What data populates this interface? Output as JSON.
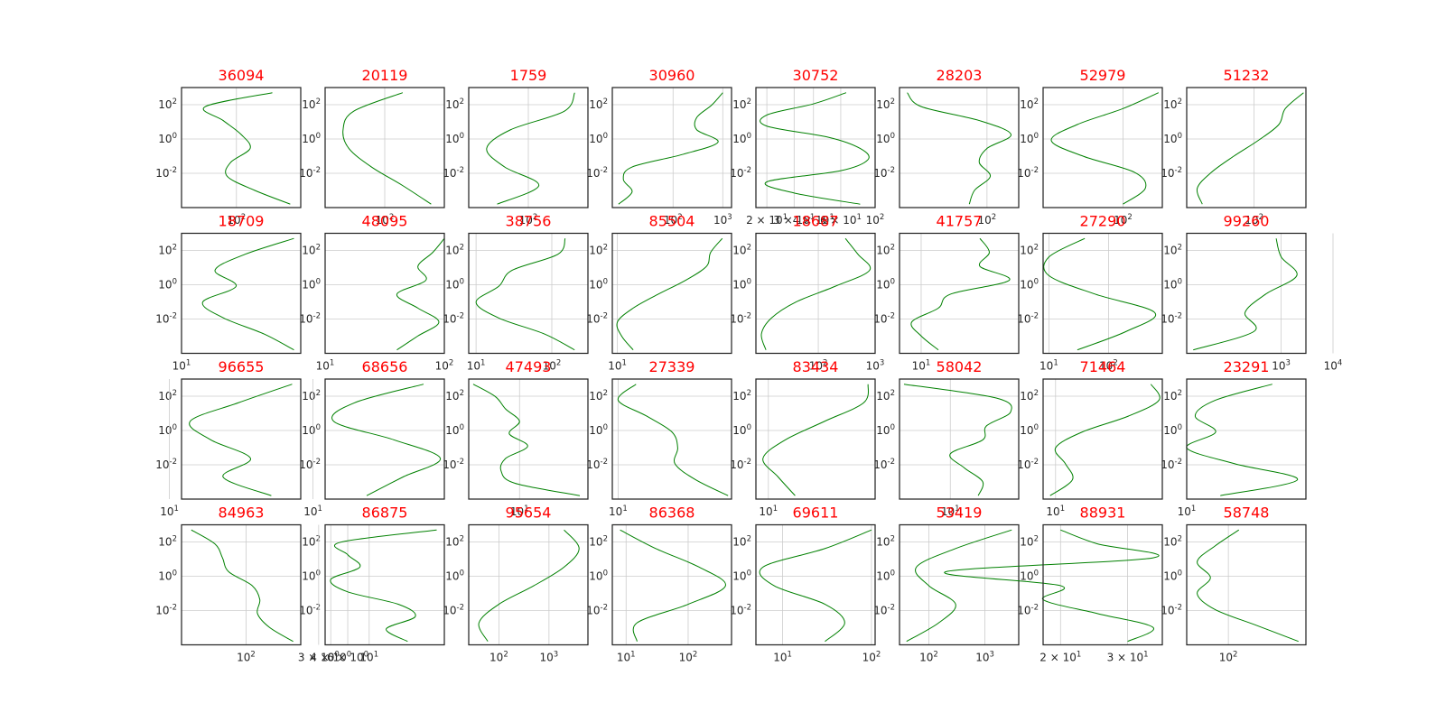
{
  "chart_data": {
    "type": "line",
    "layout": "small-multiples grid 4x8",
    "line_color": "#008000",
    "title_color": "#ff0000",
    "grid": true,
    "y_scale": "log",
    "x_scale": "log",
    "y_ticks": [
      "10^-2",
      "10^0",
      "10^2"
    ],
    "yrange": [
      0.0001,
      1000
    ],
    "panels": [
      {
        "title": "36094",
        "x": [
          400,
          30,
          60,
          120,
          170,
          80,
          70,
          200,
          800
        ],
        "xlim": [
          12,
          1200
        ],
        "xtick_labels": [
          "10^2"
        ]
      },
      {
        "title": "20119",
        "x": [
          200,
          30,
          20,
          25,
          60,
          200,
          600
        ],
        "xlim": [
          10,
          1000
        ],
        "xtick_labels": [
          "10^2"
        ]
      },
      {
        "title": "1759",
        "x": [
          600,
          400,
          50,
          20,
          40,
          150,
          30
        ],
        "xlim": [
          10,
          1000
        ],
        "xtick_labels": [
          "10^2"
        ]
      },
      {
        "title": "30960",
        "x": [
          1000,
          600,
          300,
          300,
          800,
          150,
          15,
          10,
          15,
          8
        ],
        "xlim": [
          6,
          1500
        ],
        "xtick_labels": [
          "10^2",
          "10^3"
        ]
      },
      {
        "title": "30752",
        "x": [
          65,
          40,
          20,
          20,
          50,
          80,
          90,
          60,
          20,
          30,
          80
        ],
        "xlim": [
          17,
          100
        ],
        "xtick_labels": [
          "2 × 10^1",
          "3 × 10^1",
          "4 × 10^1",
          "6 × 10^1",
          "10^2"
        ]
      },
      {
        "title": "28203",
        "x": [
          10,
          15,
          80,
          200,
          100,
          80,
          110,
          70,
          60
        ],
        "xlim": [
          8,
          250
        ],
        "xtick_labels": [
          "10^2"
        ]
      },
      {
        "title": "52979",
        "x": [
          350,
          100,
          20,
          8,
          25,
          150,
          220,
          100
        ],
        "xlim": [
          6,
          400
        ],
        "xtick_labels": [
          "10^2"
        ]
      },
      {
        "title": "51232",
        "x": [
          900,
          400,
          300,
          120,
          40,
          15,
          8,
          10
        ],
        "xlim": [
          5,
          1000
        ],
        "xtick_labels": [
          "10^2"
        ]
      },
      {
        "title": "18709",
        "x": [
          400,
          80,
          30,
          60,
          20,
          40,
          150,
          400
        ],
        "xlim": [
          10,
          500
        ],
        "xtick_labels": [
          "10^1"
        ]
      },
      {
        "title": "48095",
        "x": [
          100,
          80,
          60,
          70,
          40,
          60,
          90,
          60,
          40
        ],
        "xlim": [
          10,
          100
        ],
        "xtick_labels": [
          "10^1",
          "10^2"
        ]
      },
      {
        "title": "38756",
        "x": [
          150,
          120,
          30,
          20,
          10,
          20,
          80,
          200
        ],
        "xlim": [
          8,
          300
        ],
        "xtick_labels": [
          "10^1",
          "10^2"
        ]
      },
      {
        "title": "85504",
        "x": [
          1000,
          600,
          500,
          200,
          60,
          20,
          10,
          12,
          20
        ],
        "xlim": [
          8,
          1500
        ],
        "xtick_labels": [
          "10^1"
        ]
      },
      {
        "title": "18687",
        "x": [
          300,
          500,
          800,
          200,
          40,
          15,
          10,
          12
        ],
        "xlim": [
          8,
          1000
        ],
        "xtick_labels": [
          "10^2",
          "10^3"
        ]
      },
      {
        "title": "41757",
        "x": [
          40,
          50,
          40,
          80,
          20,
          15,
          8,
          10,
          15
        ],
        "xlim": [
          6,
          100
        ],
        "xtick_labels": [
          "10^1"
        ]
      },
      {
        "title": "27290",
        "x": [
          40,
          10,
          10,
          60,
          600,
          200,
          30
        ],
        "xlim": [
          8,
          800
        ],
        "xtick_labels": [
          "10^1",
          "10^2"
        ]
      },
      {
        "title": "99260",
        "x": [
          800,
          1000,
          2000,
          500,
          200,
          300,
          20
        ],
        "xlim": [
          15,
          3000
        ],
        "xtick_labels": [
          "10^3",
          "10^4"
        ]
      },
      {
        "title": "96655",
        "x": [
          600,
          100,
          20,
          40,
          150,
          60,
          300
        ],
        "xlim": [
          15,
          800
        ],
        "xtick_labels": [
          "10^1"
        ]
      },
      {
        "title": "68656",
        "x": [
          400,
          40,
          20,
          150,
          700,
          200,
          60
        ],
        "xlim": [
          15,
          800
        ],
        "xtick_labels": [
          "10^1"
        ]
      },
      {
        "title": "47493",
        "x": [
          1,
          3,
          5,
          10,
          6,
          15,
          5,
          4,
          8,
          200
        ],
        "xlim": [
          0.8,
          300
        ],
        "xtick_labels": [
          "10^1"
        ]
      },
      {
        "title": "27339",
        "x": [
          20,
          10,
          30,
          80,
          100,
          90,
          200,
          700
        ],
        "xlim": [
          8,
          800
        ],
        "xtick_labels": [
          "10^1"
        ]
      },
      {
        "title": "83434",
        "x": [
          600,
          500,
          100,
          20,
          8,
          15,
          30
        ],
        "xlim": [
          6,
          800
        ],
        "xtick_labels": [
          "10^1"
        ]
      },
      {
        "title": "58042",
        "x": [
          1,
          100,
          200,
          60,
          50,
          10,
          20,
          50,
          40
        ],
        "xlim": [
          0.8,
          300
        ],
        "xtick_labels": [
          "10^1"
        ]
      },
      {
        "title": "71464",
        "x": [
          500,
          700,
          200,
          30,
          10,
          15,
          20,
          8
        ],
        "xlim": [
          6,
          800
        ],
        "xtick_labels": [
          "10^1"
        ]
      },
      {
        "title": "23291",
        "x": [
          600,
          40,
          15,
          40,
          10,
          100,
          2000,
          50
        ],
        "xlim": [
          10,
          3000
        ],
        "xtick_labels": [
          "10^1"
        ]
      },
      {
        "title": "84963",
        "x": [
          20,
          40,
          50,
          60,
          120,
          150,
          140,
          200,
          400
        ],
        "xlim": [
          15,
          500
        ],
        "xtick_labels": [
          "10^2"
        ]
      },
      {
        "title": "86875",
        "x": [
          50,
          5,
          6,
          8,
          4,
          6,
          20,
          30,
          15,
          25
        ],
        "xlim": [
          3.5,
          60
        ],
        "xtick_labels": [
          "3 × 10^0",
          "4 × 10^0",
          "6 × 10^0",
          "10^1"
        ]
      },
      {
        "title": "95654",
        "x": [
          2000,
          4000,
          2000,
          500,
          100,
          40,
          60
        ],
        "xlim": [
          25,
          6000
        ],
        "xtick_labels": [
          "10^2",
          "10^3"
        ]
      },
      {
        "title": "86368",
        "x": [
          8,
          30,
          150,
          400,
          100,
          15,
          15
        ],
        "xlim": [
          6,
          500
        ],
        "xtick_labels": [
          "10^1",
          "10^2"
        ]
      },
      {
        "title": "69611",
        "x": [
          100,
          30,
          6,
          8,
          30,
          50,
          30
        ],
        "xlim": [
          5,
          110
        ],
        "xtick_labels": [
          "10^1",
          "10^2"
        ]
      },
      {
        "title": "53419",
        "x": [
          3000,
          300,
          60,
          100,
          300,
          150,
          40
        ],
        "xlim": [
          30,
          4000
        ],
        "xtick_labels": [
          "10^2",
          "10^3"
        ]
      },
      {
        "title": "88931",
        "x": [
          20,
          25,
          35,
          10,
          20,
          18,
          25,
          35,
          30
        ],
        "xlim": [
          18,
          37
        ],
        "xtick_labels": [
          "2 × 10^1",
          "3 × 10^1"
        ]
      },
      {
        "title": "58748",
        "x": [
          150,
          60,
          30,
          50,
          30,
          60,
          300,
          1500
        ],
        "xlim": [
          20,
          2000
        ],
        "xtick_labels": [
          "10^2"
        ]
      }
    ]
  }
}
